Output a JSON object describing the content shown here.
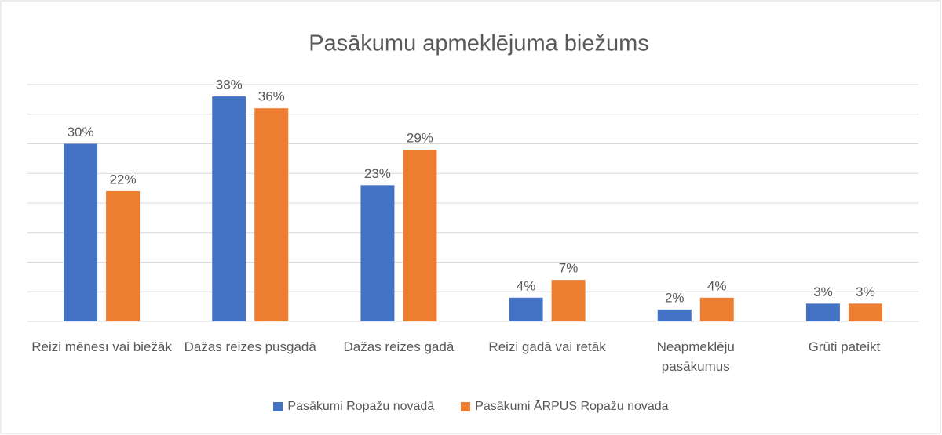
{
  "chart_data": {
    "type": "bar",
    "title": "Pasākumu apmeklējuma biežums",
    "categories": [
      "Reizi mēnesī vai biežāk",
      "Dažas reizes pusgadā",
      "Dažas reizes gadā",
      "Reizi gadā vai retāk",
      "Neapmeklēju pasākumus",
      "Grūti pateikt"
    ],
    "series": [
      {
        "name": "Pasākumi Ropažu novadā",
        "color": "#4472c4",
        "values": [
          30,
          38,
          23,
          4,
          2,
          3
        ],
        "value_labels": [
          "30%",
          "38%",
          "23%",
          "4%",
          "2%",
          "3%"
        ]
      },
      {
        "name": "Pasākumi ĀRPUS Ropažu novada",
        "color": "#ed7d31",
        "values": [
          22,
          36,
          29,
          7,
          4,
          3
        ],
        "value_labels": [
          "22%",
          "36%",
          "29%",
          "7%",
          "4%",
          "3%"
        ]
      }
    ],
    "ylim": [
      0,
      40
    ],
    "yticks": [
      0,
      5,
      10,
      15,
      20,
      25,
      30,
      35,
      40
    ],
    "grid": true,
    "legend": "bottom"
  }
}
